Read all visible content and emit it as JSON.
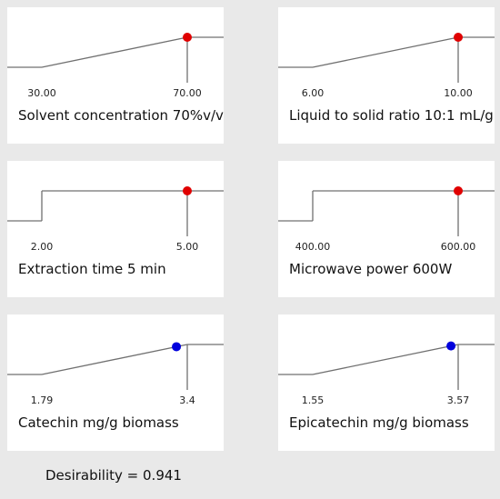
{
  "chart_data": [
    {
      "type": "line",
      "shape": "ramp-up",
      "factor": "Solvent concentration",
      "caption": "Solvent concentration 70%v/v",
      "low_label": "30.00",
      "high_label": "70.00",
      "low": 30.0,
      "high": 70.0,
      "optimum": 70.0,
      "marker_color": "#e00000"
    },
    {
      "type": "line",
      "shape": "ramp-up",
      "factor": "Liquid to solid ratio",
      "caption": "Liquid to solid ratio 10:1 mL/g",
      "low_label": "6.00",
      "high_label": "10.00",
      "low": 6.0,
      "high": 10.0,
      "optimum": 10.0,
      "marker_color": "#e00000"
    },
    {
      "type": "line",
      "shape": "step",
      "factor": "Extraction time",
      "caption": "Extraction time 5 min",
      "low_label": "2.00",
      "high_label": "5.00",
      "low": 2.0,
      "high": 5.0,
      "optimum": 5.0,
      "marker_color": "#e00000"
    },
    {
      "type": "line",
      "shape": "step",
      "factor": "Microwave power",
      "caption": "Microwave power 600W",
      "low_label": "400.00",
      "high_label": "600.00",
      "low": 400.0,
      "high": 600.0,
      "optimum": 600.0,
      "marker_color": "#e00000"
    },
    {
      "type": "line",
      "shape": "ramp-up",
      "factor": "Catechin",
      "caption": "Catechin mg/g biomass",
      "low_label": "1.79",
      "high_label": "3.4",
      "low": 1.79,
      "high": 3.4,
      "optimum": 3.28,
      "marker_color": "#0000dd"
    },
    {
      "type": "line",
      "shape": "ramp-up",
      "factor": "Epicatechin",
      "caption": "Epicatechin mg/g biomass",
      "low_label": "1.55",
      "high_label": "3.57",
      "low": 1.55,
      "high": 3.57,
      "optimum": 3.47,
      "marker_color": "#0000dd"
    }
  ],
  "desirability": {
    "label": "Desirability = 0.941",
    "value": 0.941
  }
}
